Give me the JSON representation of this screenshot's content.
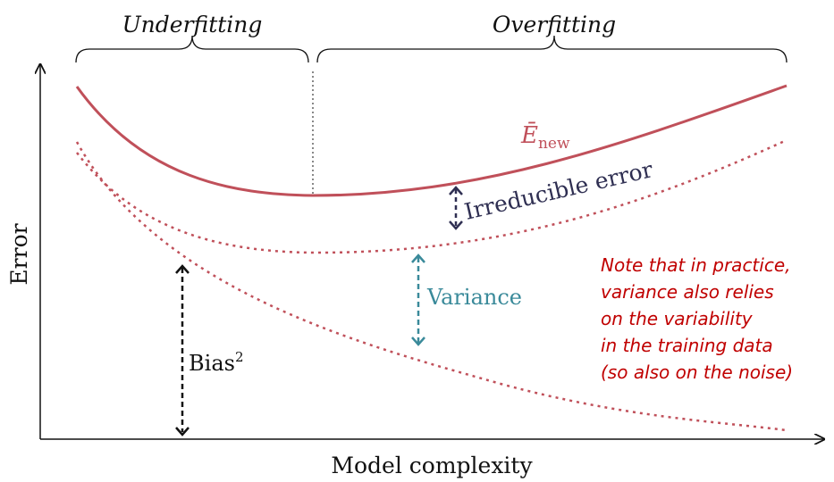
{
  "labels": {
    "underfitting": "Underfitting",
    "overfitting": "Overfitting",
    "x_axis": "Model complexity",
    "y_axis": "Error",
    "e_new_symbol": "Ē",
    "e_new_subscript": "new",
    "irreducible_error": "Irreducible error",
    "variance": "Variance",
    "bias_base": "Bias",
    "bias_exponent": "2"
  },
  "note": {
    "lines": [
      "Note that in practice,",
      "variance also relies",
      "on the variability",
      "in the training data",
      "(so also on the noise)"
    ]
  },
  "colors": {
    "curve": "#c0505a",
    "axis": "#111111",
    "irreducible_arrow": "#2f2f52",
    "variance_arrow": "#3a8a9a",
    "bias_arrow": "#111111",
    "note_text": "#c00000"
  }
}
